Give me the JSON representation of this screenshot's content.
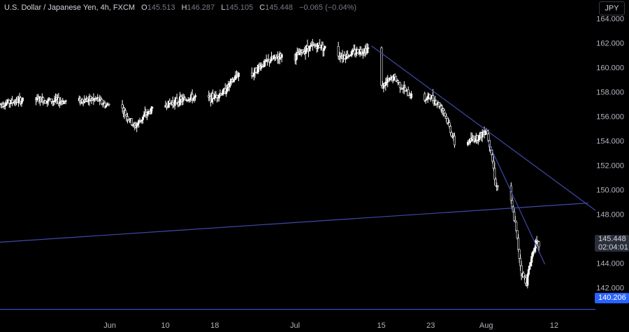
{
  "header": {
    "symbol": "U.S. Dollar / Japanese Yen, 4h, FXCM",
    "open_label": "O",
    "open": "145.513",
    "high_label": "H",
    "high": "146.287",
    "low_label": "L",
    "low": "145.105",
    "close_label": "C",
    "close": "145.448",
    "change": "−0.065 (−0.04%)"
  },
  "currency_button": "JPY",
  "price_badge": {
    "price": "145.448",
    "countdown": "02:04:01"
  },
  "level_badge": "140.206",
  "colors": {
    "background": "#000000",
    "candle": "#ffffff",
    "trendline": "#3f4aa8",
    "level": "#3c47c9",
    "axis_text": "#b2b5be"
  },
  "chart_data": {
    "type": "candlestick",
    "title": "U.S. Dollar / Japanese Yen, 4h, FXCM",
    "y_ticks": [
      142,
      144,
      146,
      148,
      150,
      152,
      154,
      156,
      158,
      160,
      162,
      164
    ],
    "y_tick_labels": [
      "142.000",
      "144.000",
      "146.000",
      "148.000",
      "150.000",
      "152.000",
      "154.000",
      "156.000",
      "158.000",
      "160.000",
      "162.000",
      "164.000"
    ],
    "ylim": [
      139.5,
      165.5
    ],
    "x_ticks": [
      {
        "label": "Jun",
        "day": 33
      },
      {
        "label": "10",
        "day": 42
      },
      {
        "label": "18",
        "day": 50
      },
      {
        "label": "Jul",
        "day": 63
      },
      {
        "label": "15",
        "day": 77
      },
      {
        "label": "23",
        "day": 85
      },
      {
        "label": "Aug",
        "day": 94
      },
      {
        "label": "12",
        "day": 105
      }
    ],
    "xlim": [
      15.2,
      111.7
    ],
    "path_points": [
      [
        15.2,
        157.0
      ],
      [
        20,
        157.4
      ],
      [
        26,
        157.2
      ],
      [
        31,
        157.4
      ],
      [
        32.5,
        156.8
      ],
      [
        33.5,
        157.8
      ],
      [
        35.5,
        156.2
      ],
      [
        37,
        155.1
      ],
      [
        38.5,
        156.0
      ],
      [
        40,
        156.6
      ],
      [
        43,
        157.1
      ],
      [
        46,
        157.5
      ],
      [
        49,
        157.4
      ],
      [
        51.5,
        158.0
      ],
      [
        54,
        159.6
      ],
      [
        55.5,
        159.0
      ],
      [
        57,
        160.0
      ],
      [
        59,
        160.6
      ],
      [
        61,
        161.0
      ],
      [
        63,
        160.8
      ],
      [
        65,
        161.6
      ],
      [
        67,
        161.8
      ],
      [
        69,
        161.2
      ],
      [
        71,
        160.9
      ],
      [
        73,
        161.3
      ],
      [
        75.5,
        161.6
      ],
      [
        75.7,
        158.6
      ],
      [
        77,
        158.4
      ],
      [
        79,
        159.2
      ],
      [
        81,
        158.0
      ],
      [
        83,
        157.2
      ],
      [
        85,
        157.6
      ],
      [
        87,
        156.6
      ],
      [
        88.5,
        154.4
      ],
      [
        89.5,
        152.7
      ],
      [
        91,
        153.9
      ],
      [
        93,
        154.4
      ],
      [
        94,
        155.0
      ],
      [
        94.8,
        153.2
      ],
      [
        95.6,
        150.2
      ],
      [
        96.6,
        150.8
      ],
      [
        97.7,
        149.7
      ],
      [
        98.7,
        147.2
      ],
      [
        99.7,
        143.2
      ],
      [
        100.5,
        142.4
      ],
      [
        101.2,
        144.2
      ],
      [
        101.9,
        145.6
      ],
      [
        102.6,
        145.45
      ]
    ],
    "trendlines": [
      {
        "from": [
          75.4,
          161.75
        ],
        "to": [
          111.7,
          148.3
        ]
      },
      {
        "from": [
          94.2,
          154.0
        ],
        "to": [
          103.5,
          143.9
        ]
      },
      {
        "from": [
          15.2,
          145.7
        ],
        "to": [
          110.5,
          148.9
        ]
      }
    ],
    "horizontal_level": 140.206
  }
}
